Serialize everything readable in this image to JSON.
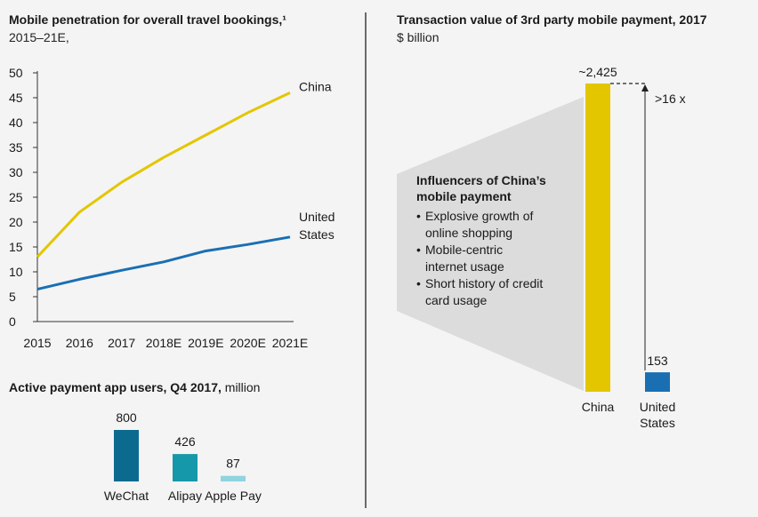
{
  "chart_data": [
    {
      "type": "line",
      "title": "Mobile penetration for overall travel bookings,¹",
      "subtitle": "2015–21E,",
      "categories": [
        "2015",
        "2016",
        "2017",
        "2018E",
        "2019E",
        "2020E",
        "2021E"
      ],
      "ylim": [
        0,
        50
      ],
      "yticks": [
        "0",
        "5",
        "10",
        "15",
        "20",
        "25",
        "30",
        "35",
        "40",
        "45",
        "50"
      ],
      "series": [
        {
          "name": "China",
          "label_lines": [
            "China"
          ],
          "color": "#e3c600",
          "values": [
            13,
            22,
            28,
            33,
            37.5,
            42,
            46
          ]
        },
        {
          "name": "United States",
          "label_lines": [
            "United",
            "States"
          ],
          "color": "#1a6fb3",
          "values": [
            6.5,
            8.5,
            10.3,
            12,
            14.2,
            15.5,
            17
          ]
        }
      ]
    },
    {
      "type": "bar",
      "title": "Active payment app users, Q4 2017,",
      "title_unit": "million",
      "categories": [
        "WeChat",
        "Alipay",
        "Apple Pay"
      ],
      "values": [
        800,
        426,
        87
      ],
      "value_labels": [
        "800",
        "426",
        "87"
      ],
      "colors": [
        "#0c6a8f",
        "#1598aa",
        "#90d4e0"
      ]
    },
    {
      "type": "bar",
      "title": "Transaction value of 3rd party mobile payment, 2017",
      "subtitle": "$ billion",
      "categories": [
        "China",
        "United States"
      ],
      "category_lines": [
        [
          "China"
        ],
        [
          "United",
          "States"
        ]
      ],
      "values": [
        2425,
        153
      ],
      "value_labels": [
        "~2,425",
        "153"
      ],
      "colors": [
        "#e3c600",
        "#1a6fb3"
      ],
      "annotation": ">16 x"
    }
  ],
  "callout": {
    "title_lines": [
      "Influencers of China’s",
      "mobile payment"
    ],
    "bullet": "•",
    "items": [
      [
        "Explosive growth of",
        "online shopping"
      ],
      [
        "Mobile-centric",
        "internet usage"
      ],
      [
        "Short history of credit",
        "card usage"
      ]
    ],
    "panel_color": "#dcdcdc"
  }
}
